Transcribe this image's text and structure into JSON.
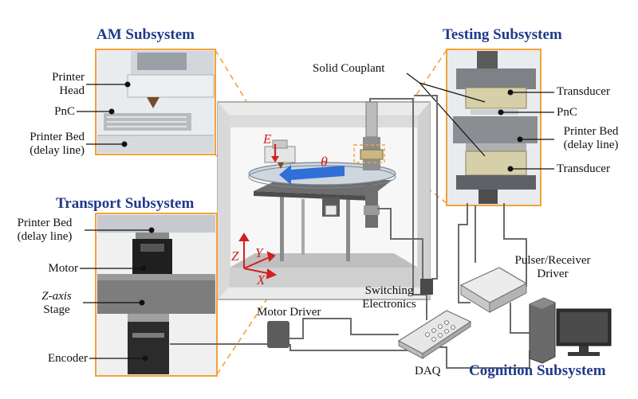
{
  "subsystems": {
    "am": "AM Subsystem",
    "testing": "Testing Subsystem",
    "transport": "Transport Subsystem",
    "cognition": "Cognition Subsystem"
  },
  "am_panel": {
    "printer_head": [
      "Printer",
      "Head"
    ],
    "pnc": "PnC",
    "printer_bed": [
      "Printer Bed",
      "(delay line)"
    ]
  },
  "testing_panel": {
    "transducer_top": "Transducer",
    "pnc": "PnC",
    "printer_bed": [
      "Printer Bed",
      "(delay line)"
    ],
    "transducer_bottom": "Transducer"
  },
  "transport_panel": {
    "printer_bed": [
      "Printer Bed",
      "(delay line)"
    ],
    "motor": "Motor",
    "z_stage": [
      "Z-axis",
      "Stage"
    ],
    "encoder": "Encoder"
  },
  "center": {
    "solid_couplant": "Solid Couplant",
    "switching": [
      "Switching",
      "Electronics"
    ],
    "motor_driver": "Motor Driver",
    "daq": "DAQ",
    "pulser": [
      "Pulser/Receiver",
      "Driver"
    ],
    "axis_z": "Z",
    "axis_y": "Y",
    "axis_x": "X",
    "axis_e": "E",
    "theta": "θ"
  },
  "colors": {
    "title_blue": "#1f3a8a",
    "callout_orange": "#f2a33a",
    "arrow_red": "#d21f1f",
    "rotation_blue": "#2f6fd6"
  }
}
